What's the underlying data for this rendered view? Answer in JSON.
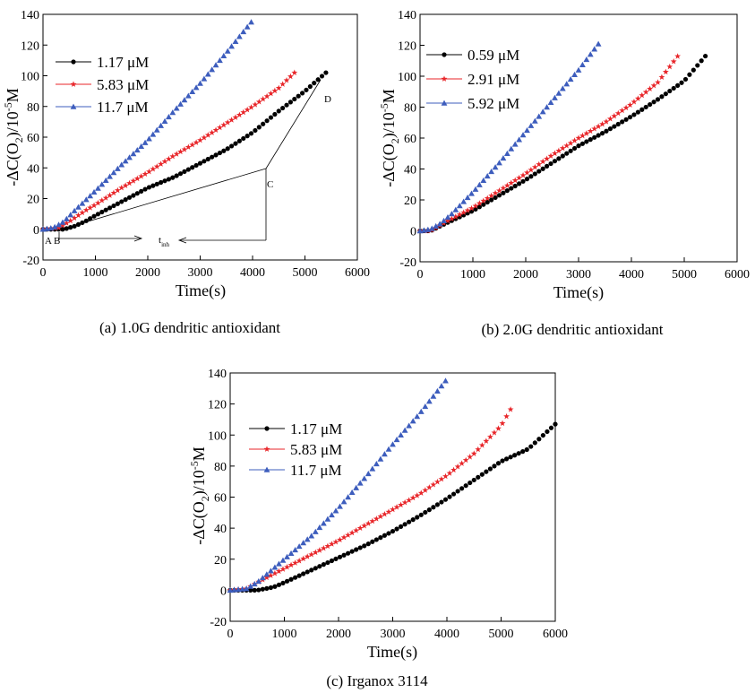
{
  "chart_data": [
    {
      "panel": "a",
      "type": "scatter",
      "caption": "(a) 1.0G dendritic antioxidant",
      "xlabel": "Time(s)",
      "ylabel": "-ΔC(O2)/10-5M",
      "xlim": [
        0,
        6000
      ],
      "ylim": [
        -20,
        140
      ],
      "xticks": [
        0,
        1000,
        2000,
        3000,
        4000,
        5000,
        6000
      ],
      "yticks": [
        -20,
        0,
        20,
        40,
        60,
        80,
        100,
        120,
        140
      ],
      "legend_position": "upper-left",
      "series": [
        {
          "name": "1.17 μM",
          "color": "#000000",
          "marker": "circle",
          "x": [
            0,
            400,
            600,
            800,
            1000,
            1500,
            2000,
            2500,
            3000,
            3500,
            4000,
            4500,
            5000,
            5400
          ],
          "y": [
            0,
            0,
            2,
            5,
            9,
            18,
            27,
            34,
            43,
            52,
            63,
            77,
            90,
            102
          ]
        },
        {
          "name": "5.83 μM",
          "color": "#e8262a",
          "marker": "star",
          "x": [
            0,
            300,
            500,
            800,
            1000,
            1500,
            2000,
            2500,
            3000,
            3500,
            4000,
            4500,
            4800
          ],
          "y": [
            0,
            1,
            5,
            12,
            16,
            27,
            37,
            48,
            58,
            69,
            80,
            92,
            102
          ]
        },
        {
          "name": "11.7 μM",
          "color": "#3d5dbd",
          "marker": "triangle",
          "x": [
            0,
            200,
            400,
            600,
            1000,
            1500,
            2000,
            2500,
            3000,
            3500,
            4000
          ],
          "y": [
            0,
            1,
            5,
            12,
            25,
            42,
            58,
            77,
            95,
            115,
            136
          ]
        }
      ],
      "annotations": {
        "A": "A",
        "B": "B",
        "C": "C",
        "D": "D",
        "t_main": "t",
        "t_sub": "inh"
      }
    },
    {
      "panel": "b",
      "type": "scatter",
      "caption": "(b) 2.0G dendritic antioxidant",
      "xlabel": "Time(s)",
      "ylabel": "-ΔC(O2)/10-5M",
      "xlim": [
        0,
        6000
      ],
      "ylim": [
        -20,
        140
      ],
      "xticks": [
        0,
        1000,
        2000,
        3000,
        4000,
        5000,
        6000
      ],
      "yticks": [
        -20,
        0,
        20,
        40,
        60,
        80,
        100,
        120,
        140
      ],
      "legend_position": "upper-left",
      "series": [
        {
          "name": "0.59 μM",
          "color": "#000000",
          "marker": "circle",
          "x": [
            0,
            200,
            500,
            1000,
            1500,
            2000,
            2500,
            3000,
            3500,
            4000,
            4500,
            5000,
            5400
          ],
          "y": [
            0,
            0,
            5,
            13,
            23,
            33,
            44,
            55,
            64,
            74,
            85,
            97,
            113
          ]
        },
        {
          "name": "2.91 μM",
          "color": "#e8262a",
          "marker": "star",
          "x": [
            0,
            200,
            500,
            1000,
            1500,
            2000,
            2500,
            3000,
            3500,
            4000,
            4500,
            4900
          ],
          "y": [
            0,
            0,
            6,
            15,
            26,
            37,
            49,
            60,
            70,
            82,
            96,
            114
          ]
        },
        {
          "name": "5.92 μM",
          "color": "#3d5dbd",
          "marker": "triangle",
          "x": [
            0,
            200,
            400,
            600,
            1000,
            1500,
            2000,
            2500,
            3000,
            3400
          ],
          "y": [
            0,
            1,
            5,
            11,
            25,
            44,
            64,
            84,
            104,
            122
          ]
        }
      ]
    },
    {
      "panel": "c",
      "type": "scatter",
      "caption": "(c) Irganox 3114",
      "xlabel": "Time(s)",
      "ylabel": "-ΔC(O2)/10-5M",
      "xlim": [
        0,
        6000
      ],
      "ylim": [
        -20,
        140
      ],
      "xticks": [
        0,
        1000,
        2000,
        3000,
        4000,
        5000,
        6000
      ],
      "yticks": [
        -20,
        0,
        20,
        40,
        60,
        80,
        100,
        120,
        140
      ],
      "legend_position": "upper-left",
      "series": [
        {
          "name": "1.17 μM",
          "color": "#000000",
          "marker": "circle",
          "x": [
            0,
            500,
            800,
            1000,
            1500,
            2000,
            2500,
            3000,
            3500,
            4000,
            4500,
            5000,
            5500,
            6000
          ],
          "y": [
            0,
            0,
            2,
            5,
            13,
            21,
            29,
            38,
            48,
            59,
            71,
            83,
            91,
            107
          ]
        },
        {
          "name": "5.83 μM",
          "color": "#e8262a",
          "marker": "star",
          "x": [
            0,
            300,
            500,
            1000,
            1500,
            2000,
            2500,
            3000,
            3500,
            4000,
            4500,
            5000,
            5200
          ],
          "y": [
            0,
            1,
            5,
            14,
            23,
            32,
            42,
            52,
            62,
            74,
            88,
            106,
            118
          ]
        },
        {
          "name": "11.7 μM",
          "color": "#3d5dbd",
          "marker": "triangle",
          "x": [
            0,
            300,
            500,
            1000,
            1500,
            2000,
            2500,
            3000,
            3500,
            4000
          ],
          "y": [
            0,
            1,
            5,
            20,
            35,
            53,
            73,
            94,
            114,
            136
          ]
        }
      ]
    }
  ]
}
